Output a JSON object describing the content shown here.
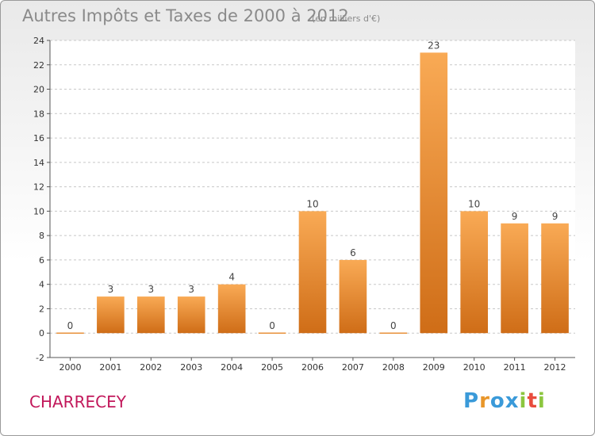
{
  "title": "Autres Impôts et Taxes de 2000 à 2012",
  "subtitle": "(en milliers d'€)",
  "commune": "CHARRECEY",
  "logo": {
    "letters": [
      "P",
      "r",
      "o",
      "x",
      "i",
      "t",
      "i"
    ],
    "colors": [
      "#3a9ad9",
      "#e8962a",
      "#3a9ad9",
      "#3a9ad9",
      "#8cc63f",
      "#e84c3d",
      "#8cc63f"
    ]
  },
  "chart_data": {
    "type": "bar",
    "title": "Autres Impôts et Taxes de 2000 à 2012",
    "subtitle": "(en milliers d'€)",
    "categories": [
      "2000",
      "2001",
      "2002",
      "2003",
      "2004",
      "2005",
      "2006",
      "2007",
      "2008",
      "2009",
      "2010",
      "2011",
      "2012"
    ],
    "values": [
      0,
      3,
      3,
      3,
      4,
      0,
      10,
      6,
      0,
      23,
      10,
      9,
      9
    ],
    "data_labels": [
      "0",
      "3",
      "3",
      "3",
      "4",
      "0",
      "10",
      "6",
      "0",
      "23",
      "10",
      "9",
      "9"
    ],
    "ylim": [
      -2,
      24
    ],
    "yticks": [
      -2,
      0,
      2,
      4,
      6,
      8,
      10,
      12,
      14,
      16,
      18,
      20,
      22,
      24
    ],
    "ytick_labels": [
      "-2",
      "0",
      "2",
      "4",
      "6",
      "8",
      "10",
      "12",
      "14",
      "16",
      "18",
      "20",
      "22",
      "24"
    ],
    "grid": "horizontal dashed",
    "bar_color_top": "#f9aa55",
    "bar_color_bottom": "#cf6d17"
  }
}
